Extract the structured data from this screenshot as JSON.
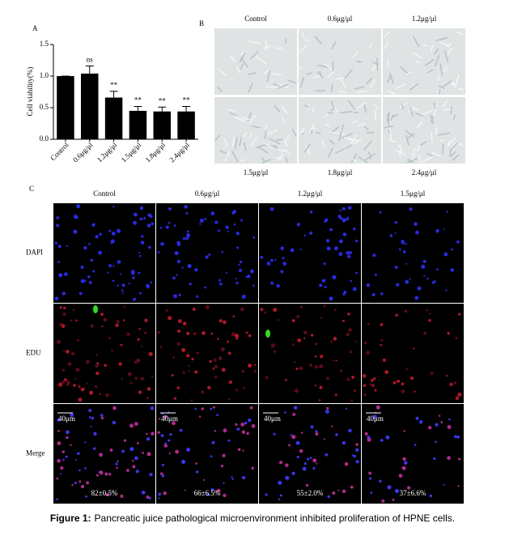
{
  "chart_data": {
    "type": "bar",
    "panel_label": "A",
    "y_label": "Cell viability(%)",
    "categories": [
      "Control",
      "0.6μg/μl",
      "1.2μg/μl",
      "1.5μg/μl",
      "1.8μg/μl",
      "2.4μg/μl"
    ],
    "values": [
      1.0,
      1.04,
      0.66,
      0.45,
      0.44,
      0.44
    ],
    "errors": [
      0,
      0.12,
      0.1,
      0.07,
      0.07,
      0.08
    ],
    "annotations": [
      null,
      "ns",
      "**",
      "**",
      "**",
      "**"
    ],
    "color": "#000000",
    "ylim": [
      0,
      1.5
    ],
    "yticks": [
      {
        "value": 0,
        "label": "0.0"
      },
      {
        "value": 0.5,
        "label": "0.5"
      },
      {
        "value": 1,
        "label": "1.0"
      },
      {
        "value": 1.5,
        "label": "1.5"
      }
    ]
  },
  "panel_b": {
    "label": "B",
    "top_labels": [
      "Control",
      "0.6μg/μl",
      "1.2μg/μl"
    ],
    "bottom_labels": [
      "1.5μg/μl",
      "1.8μg/μl",
      "2.4μg/μl"
    ]
  },
  "panel_c": {
    "label": "C",
    "columns": [
      "Control",
      "0.6μg/μl",
      "1.2μg/μl",
      "1.5μg/μl"
    ],
    "rows": [
      "DAPI",
      "EDU",
      "Merge"
    ],
    "scale_bar": "40μm",
    "percentages": [
      "82±0.5%",
      "66±6.5%",
      "55±2.0%",
      "37±6.6%"
    ]
  },
  "caption": {
    "label": "Figure 1:",
    "text": "Pancreatic juice pathological microenvironment inhibited proliferation of HPNE cells."
  }
}
